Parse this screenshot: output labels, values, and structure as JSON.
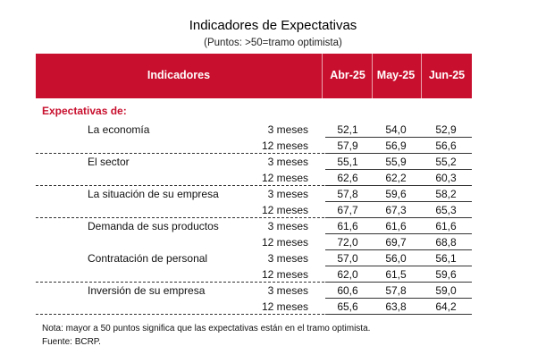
{
  "title": "Indicadores de Expectativas",
  "subtitle": "(Puntos: >50=tramo optimista)",
  "header": {
    "indicadores": "Indicadores",
    "columns": [
      "Abr-25",
      "May-25",
      "Jun-25"
    ]
  },
  "section_label": "Expectativas de:",
  "groups": [
    {
      "label": "La economía",
      "rows": [
        {
          "horizon": "3 meses",
          "values": [
            "52,1",
            "54,0",
            "52,9"
          ]
        },
        {
          "horizon": "12 meses",
          "values": [
            "57,9",
            "56,9",
            "56,6"
          ]
        }
      ]
    },
    {
      "label": "El sector",
      "rows": [
        {
          "horizon": "3 meses",
          "values": [
            "55,1",
            "55,9",
            "55,2"
          ]
        },
        {
          "horizon": "12 meses",
          "values": [
            "62,6",
            "62,2",
            "60,3"
          ]
        }
      ]
    },
    {
      "label": "La situación de su empresa",
      "rows": [
        {
          "horizon": "3 meses",
          "values": [
            "57,8",
            "59,6",
            "58,2"
          ]
        },
        {
          "horizon": "12 meses",
          "values": [
            "67,7",
            "67,3",
            "65,3"
          ]
        }
      ]
    },
    {
      "label": "Demanda de sus productos",
      "rows": [
        {
          "horizon": "3 meses",
          "values": [
            "61,6",
            "61,6",
            "61,6"
          ]
        },
        {
          "horizon": "12 meses",
          "values": [
            "72,0",
            "69,7",
            "68,8"
          ]
        }
      ]
    },
    {
      "label": "Contratación de personal",
      "rows": [
        {
          "horizon": "3 meses",
          "values": [
            "57,0",
            "56,0",
            "56,1"
          ]
        },
        {
          "horizon": "12 meses",
          "values": [
            "62,0",
            "61,5",
            "59,6"
          ]
        }
      ]
    },
    {
      "label": "Inversión de su empresa",
      "rows": [
        {
          "horizon": "3 meses",
          "values": [
            "60,6",
            "57,8",
            "59,0"
          ]
        },
        {
          "horizon": "12 meses",
          "values": [
            "65,6",
            "63,8",
            "64,2"
          ]
        }
      ]
    }
  ],
  "note": "Nota: mayor a 50 puntos significa que las expectativas están en el tramo optimista.",
  "source": "Fuente: BCRP."
}
